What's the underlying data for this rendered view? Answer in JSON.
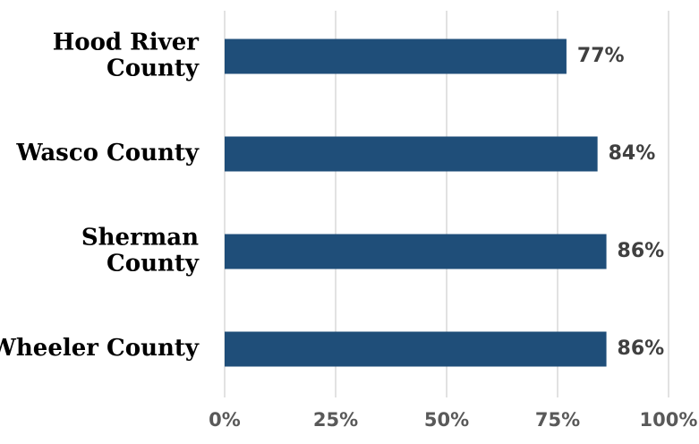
{
  "chart_data": {
    "type": "bar",
    "orientation": "horizontal",
    "categories": [
      [
        "Hood River",
        "County"
      ],
      [
        "Wasco County"
      ],
      [
        "Sherman",
        "County"
      ],
      [
        "Wheeler County"
      ]
    ],
    "values": [
      77,
      84,
      86,
      86
    ],
    "data_labels": [
      "77%",
      "84%",
      "86%",
      "86%"
    ],
    "xlim": [
      0,
      100
    ],
    "xticks": [
      0,
      25,
      50,
      75,
      100
    ],
    "xtick_labels": [
      "0%",
      "25%",
      "50%",
      "75%",
      "100%"
    ],
    "title": "",
    "xlabel": "",
    "ylabel": "",
    "grid": "vertical",
    "legend": "none",
    "bar_color": "#1f4e79"
  }
}
